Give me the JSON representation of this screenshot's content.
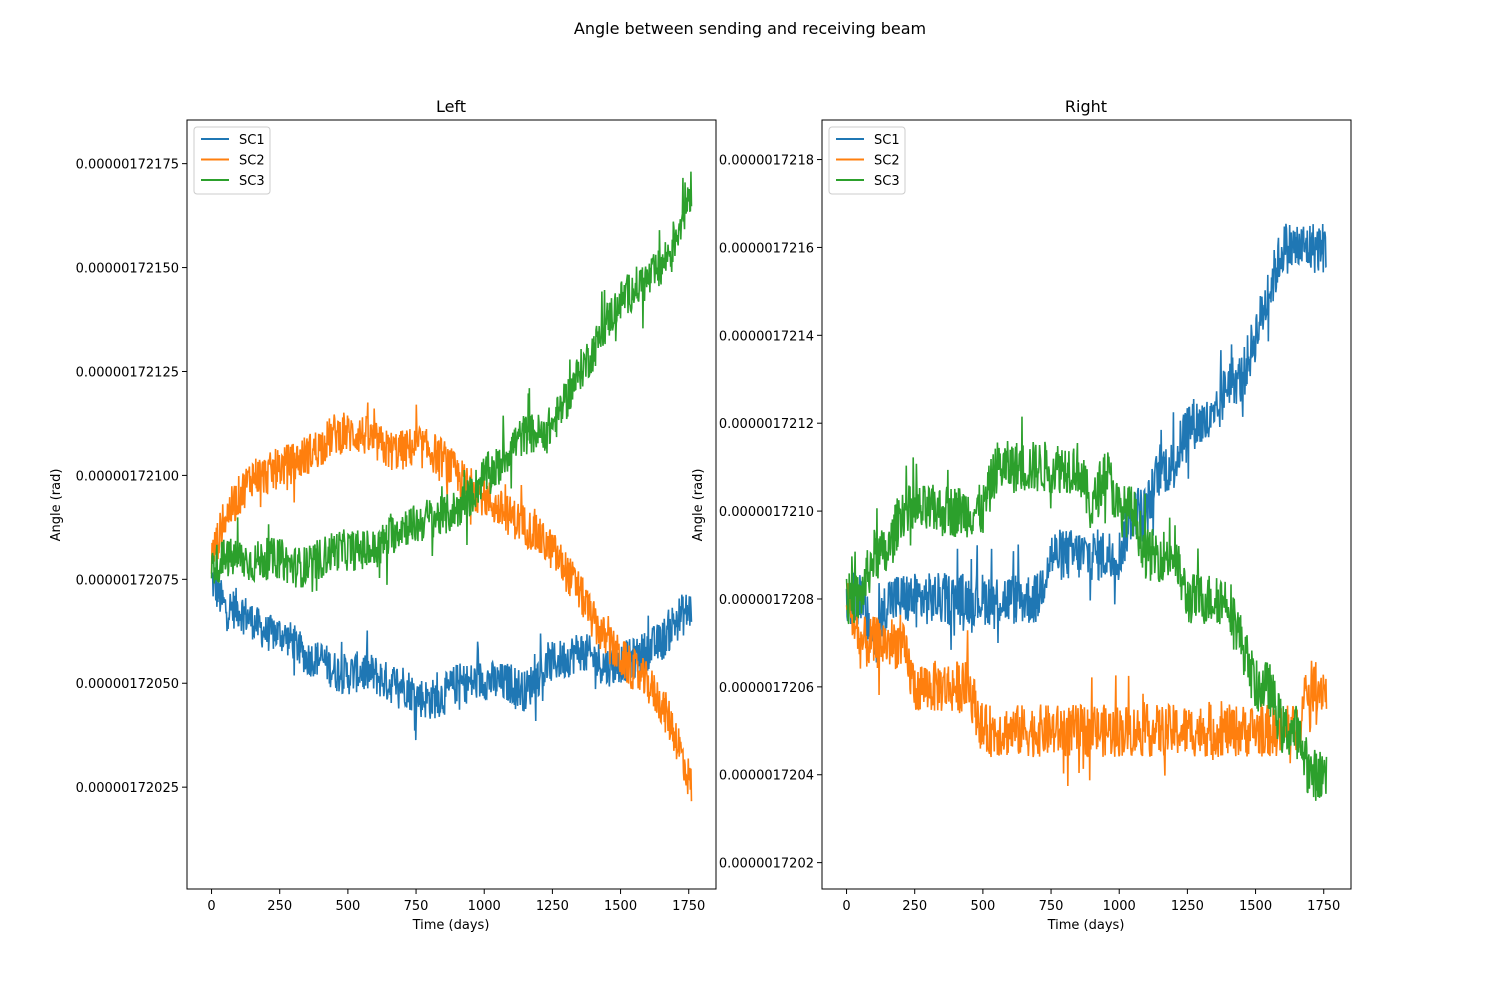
{
  "figure": {
    "suptitle": "Angle between sending and receiving beam"
  },
  "chart_data": [
    {
      "type": "line",
      "title": "Left",
      "xlabel": "Time (days)",
      "ylabel": "Angle (rad)",
      "xlim": [
        -90,
        1850
      ],
      "ylim": [
        1.720005e-06,
        1.721855e-06
      ],
      "xticks": [
        0,
        250,
        500,
        750,
        1000,
        1250,
        1500,
        1750
      ],
      "xtick_labels": [
        "0",
        "250",
        "500",
        "750",
        "1000",
        "1250",
        "1500",
        "1750"
      ],
      "yticks": [
        1.72025e-06,
        1.7205e-06,
        1.72075e-06,
        1.721e-06,
        1.72125e-06,
        1.7215e-06,
        1.72175e-06
      ],
      "ytick_labels": [
        "0.00000172025",
        "0.00000172050",
        "0.00000172075",
        "0.00000172100",
        "0.00000172125",
        "0.00000172150",
        "0.00000172175"
      ],
      "legend_position": "top-left",
      "x": [
        0,
        50,
        100,
        150,
        200,
        250,
        300,
        350,
        400,
        450,
        500,
        550,
        600,
        650,
        700,
        750,
        800,
        850,
        900,
        950,
        1000,
        1050,
        1100,
        1150,
        1200,
        1250,
        1300,
        1350,
        1400,
        1450,
        1500,
        1550,
        1600,
        1650,
        1700,
        1760
      ],
      "series": [
        {
          "name": "SC1",
          "color": "#1f77b4",
          "values": [
            1.72075e-06,
            1.72068e-06,
            1.72068e-06,
            1.72065e-06,
            1.72062e-06,
            1.72062e-06,
            1.7206e-06,
            1.72056e-06,
            1.72056e-06,
            1.72053e-06,
            1.72052e-06,
            1.72053e-06,
            1.72052e-06,
            1.7205e-06,
            1.7205e-06,
            1.72047e-06,
            1.72046e-06,
            1.72047e-06,
            1.7205e-06,
            1.7205e-06,
            1.72051e-06,
            1.7205e-06,
            1.7205e-06,
            1.72048e-06,
            1.72052e-06,
            1.72055e-06,
            1.72056e-06,
            1.72058e-06,
            1.72056e-06,
            1.72054e-06,
            1.72055e-06,
            1.72056e-06,
            1.72058e-06,
            1.7206e-06,
            1.72065e-06,
            1.72068e-06
          ],
          "band": [
            1e-10,
            1e-10,
            1e-10,
            9e-11,
            9e-11,
            9e-11,
            9e-11,
            9e-11,
            9e-11,
            1e-10,
            1e-10,
            1e-10,
            1e-10,
            1e-10,
            1e-10,
            1e-10,
            1e-10,
            1e-10,
            1e-10,
            1e-10,
            1e-10,
            1e-10,
            1e-10,
            1e-10,
            1e-10,
            1e-10,
            1e-10,
            1e-10,
            1e-10,
            1e-10,
            1e-10,
            1e-10,
            1e-10,
            1e-10,
            1.1e-10,
            1e-10
          ]
        },
        {
          "name": "SC2",
          "color": "#ff7f0e",
          "values": [
            1.7208e-06,
            1.7209e-06,
            1.72095e-06,
            1.721e-06,
            1.721e-06,
            1.72102e-06,
            1.72103e-06,
            1.72105e-06,
            1.72107e-06,
            1.7211e-06,
            1.7211e-06,
            1.7211e-06,
            1.72108e-06,
            1.72106e-06,
            1.72106e-06,
            1.72107e-06,
            1.72106e-06,
            1.72104e-06,
            1.721e-06,
            1.72097e-06,
            1.72095e-06,
            1.72092e-06,
            1.7209e-06,
            1.72088e-06,
            1.72085e-06,
            1.72082e-06,
            1.72077e-06,
            1.72072e-06,
            1.72065e-06,
            1.7206e-06,
            1.72056e-06,
            1.72053e-06,
            1.7205e-06,
            1.72045e-06,
            1.72038e-06,
            1.72025e-06
          ],
          "band": [
            1e-10,
            1e-10,
            1e-10,
            1e-10,
            1e-10,
            1e-10,
            1e-10,
            1e-10,
            1e-10,
            1e-10,
            1e-10,
            1e-10,
            1e-10,
            1e-10,
            1e-10,
            1e-10,
            1e-10,
            1e-10,
            1e-10,
            1e-10,
            1e-10,
            1e-10,
            1e-10,
            1e-10,
            1e-10,
            1e-10,
            1e-10,
            1e-10,
            1e-10,
            1e-10,
            1e-10,
            1e-10,
            1e-10,
            1e-10,
            1.1e-10,
            1e-10
          ]
        },
        {
          "name": "SC3",
          "color": "#2ca02c",
          "values": [
            1.72078e-06,
            1.7208e-06,
            1.7208e-06,
            1.72079e-06,
            1.7208e-06,
            1.7208e-06,
            1.72078e-06,
            1.72078e-06,
            1.7208e-06,
            1.72082e-06,
            1.72082e-06,
            1.72082e-06,
            1.72082e-06,
            1.72085e-06,
            1.72088e-06,
            1.72088e-06,
            1.7209e-06,
            1.7209e-06,
            1.72092e-06,
            1.72095e-06,
            1.721e-06,
            1.72102e-06,
            1.72107e-06,
            1.7211e-06,
            1.7211e-06,
            1.72112e-06,
            1.72118e-06,
            1.72125e-06,
            1.7213e-06,
            1.72137e-06,
            1.72142e-06,
            1.72145e-06,
            1.72147e-06,
            1.7215e-06,
            1.72157e-06,
            1.7217e-06
          ],
          "band": [
            1e-10,
            1e-10,
            1e-10,
            1e-10,
            1e-10,
            1e-10,
            1e-10,
            1e-10,
            1e-10,
            1e-10,
            1e-10,
            1e-10,
            1e-10,
            1e-10,
            1e-10,
            1e-10,
            1e-10,
            1e-10,
            1e-10,
            1e-10,
            1e-10,
            1e-10,
            1e-10,
            1e-10,
            1e-10,
            1e-10,
            1e-10,
            1e-10,
            1e-10,
            1e-10,
            1e-10,
            1e-10,
            1e-10,
            1e-10,
            1.1e-10,
            1.2e-10
          ]
        }
      ]
    },
    {
      "type": "line",
      "title": "Right",
      "xlabel": "Time (days)",
      "ylabel": "Angle (rad)",
      "xlim": [
        -90,
        1850
      ],
      "ylim": [
        1.72014e-06,
        1.72189e-06
      ],
      "xticks": [
        0,
        250,
        500,
        750,
        1000,
        1250,
        1500,
        1750
      ],
      "xtick_labels": [
        "0",
        "250",
        "500",
        "750",
        "1000",
        "1250",
        "1500",
        "1750"
      ],
      "yticks": [
        1.7202e-06,
        1.7204e-06,
        1.7206e-06,
        1.7208e-06,
        1.721e-06,
        1.7212e-06,
        1.7214e-06,
        1.7216e-06,
        1.7218e-06
      ],
      "ytick_labels": [
        "0.0000017202",
        "0.0000017204",
        "0.0000017206",
        "0.0000017208",
        "0.0000017210",
        "0.0000017212",
        "0.0000017214",
        "0.0000017216",
        "0.0000017218"
      ],
      "legend_position": "top-left",
      "x": [
        0,
        50,
        100,
        150,
        200,
        250,
        300,
        350,
        400,
        450,
        500,
        550,
        600,
        650,
        700,
        750,
        800,
        850,
        900,
        950,
        1000,
        1050,
        1100,
        1150,
        1200,
        1250,
        1300,
        1350,
        1400,
        1450,
        1500,
        1550,
        1600,
        1650,
        1700,
        1760
      ],
      "series": [
        {
          "name": "SC1",
          "color": "#1f77b4",
          "values": [
            1.7208e-06,
            1.7208e-06,
            1.7207e-06,
            1.7208e-06,
            1.7208e-06,
            1.7208e-06,
            1.7208e-06,
            1.7208e-06,
            1.7208e-06,
            1.7208e-06,
            1.7208e-06,
            1.7208e-06,
            1.7208e-06,
            1.7208e-06,
            1.7208e-06,
            1.7209e-06,
            1.7209e-06,
            1.7209e-06,
            1.7209e-06,
            1.7209e-06,
            1.7209e-06,
            1.721e-06,
            1.721e-06,
            1.7211e-06,
            1.7211e-06,
            1.7212e-06,
            1.7212e-06,
            1.7212e-06,
            1.7213e-06,
            1.7213e-06,
            1.7214e-06,
            1.7215e-06,
            1.7216e-06,
            1.7216e-06,
            1.7216e-06,
            1.7216e-06
          ],
          "band": [
            1.2e-10,
            1.2e-10,
            1.2e-10,
            1.2e-10,
            1.2e-10,
            1.2e-10,
            1.2e-10,
            1.2e-10,
            1.2e-10,
            1.2e-10,
            1.2e-10,
            1.2e-10,
            1.2e-10,
            1.2e-10,
            1.2e-10,
            1.2e-10,
            1.2e-10,
            1.2e-10,
            1.2e-10,
            1.2e-10,
            1.2e-10,
            1.2e-10,
            1.2e-10,
            1.2e-10,
            1.2e-10,
            1.2e-10,
            1.2e-10,
            1.2e-10,
            1.2e-10,
            1.2e-10,
            1.2e-10,
            1.2e-10,
            1.2e-10,
            1.2e-10,
            1.2e-10,
            1.2e-10
          ]
        },
        {
          "name": "SC2",
          "color": "#ff7f0e",
          "values": [
            1.7208e-06,
            1.7207e-06,
            1.7207e-06,
            1.7207e-06,
            1.7207e-06,
            1.7206e-06,
            1.7206e-06,
            1.7206e-06,
            1.7206e-06,
            1.7206e-06,
            1.7205e-06,
            1.7205e-06,
            1.7205e-06,
            1.7205e-06,
            1.7205e-06,
            1.7205e-06,
            1.7205e-06,
            1.7205e-06,
            1.7205e-06,
            1.7205e-06,
            1.7205e-06,
            1.7205e-06,
            1.7205e-06,
            1.7205e-06,
            1.7205e-06,
            1.7205e-06,
            1.7205e-06,
            1.7205e-06,
            1.7205e-06,
            1.7205e-06,
            1.7205e-06,
            1.7205e-06,
            1.7205e-06,
            1.7205e-06,
            1.7206e-06,
            1.7206e-06
          ],
          "band": [
            1.2e-10,
            1.2e-10,
            1.2e-10,
            1.2e-10,
            1.2e-10,
            1.2e-10,
            1.2e-10,
            1.2e-10,
            1.2e-10,
            1.2e-10,
            1.2e-10,
            1.2e-10,
            1.2e-10,
            1.2e-10,
            1.2e-10,
            1.2e-10,
            1.2e-10,
            1.2e-10,
            1.2e-10,
            1.2e-10,
            1.2e-10,
            1.2e-10,
            1.2e-10,
            1.2e-10,
            1.2e-10,
            1.2e-10,
            1.2e-10,
            1.2e-10,
            1.2e-10,
            1.2e-10,
            1.2e-10,
            1.2e-10,
            1.2e-10,
            1.2e-10,
            1.2e-10,
            1.2e-10
          ]
        },
        {
          "name": "SC3",
          "color": "#2ca02c",
          "values": [
            1.7208e-06,
            1.7208e-06,
            1.7209e-06,
            1.7209e-06,
            1.721e-06,
            1.721e-06,
            1.721e-06,
            1.721e-06,
            1.721e-06,
            1.721e-06,
            1.721e-06,
            1.7211e-06,
            1.7211e-06,
            1.7211e-06,
            1.7211e-06,
            1.7211e-06,
            1.7211e-06,
            1.7211e-06,
            1.721e-06,
            1.7211e-06,
            1.721e-06,
            1.721e-06,
            1.7209e-06,
            1.7209e-06,
            1.7209e-06,
            1.7208e-06,
            1.7208e-06,
            1.7208e-06,
            1.7208e-06,
            1.7207e-06,
            1.7206e-06,
            1.7206e-06,
            1.7205e-06,
            1.7205e-06,
            1.7204e-06,
            1.7204e-06
          ],
          "band": [
            1.2e-10,
            1.2e-10,
            1.2e-10,
            1.2e-10,
            1.2e-10,
            1.2e-10,
            1.2e-10,
            1.2e-10,
            1.2e-10,
            1.2e-10,
            1.2e-10,
            1.2e-10,
            1.2e-10,
            1.2e-10,
            1.2e-10,
            1.2e-10,
            1.2e-10,
            1.2e-10,
            1.2e-10,
            1.2e-10,
            1.2e-10,
            1.2e-10,
            1.2e-10,
            1.2e-10,
            1.2e-10,
            1.2e-10,
            1.2e-10,
            1.2e-10,
            1.2e-10,
            1.2e-10,
            1.2e-10,
            1.2e-10,
            1.2e-10,
            1.2e-10,
            1.2e-10,
            1.2e-10
          ]
        }
      ]
    }
  ]
}
